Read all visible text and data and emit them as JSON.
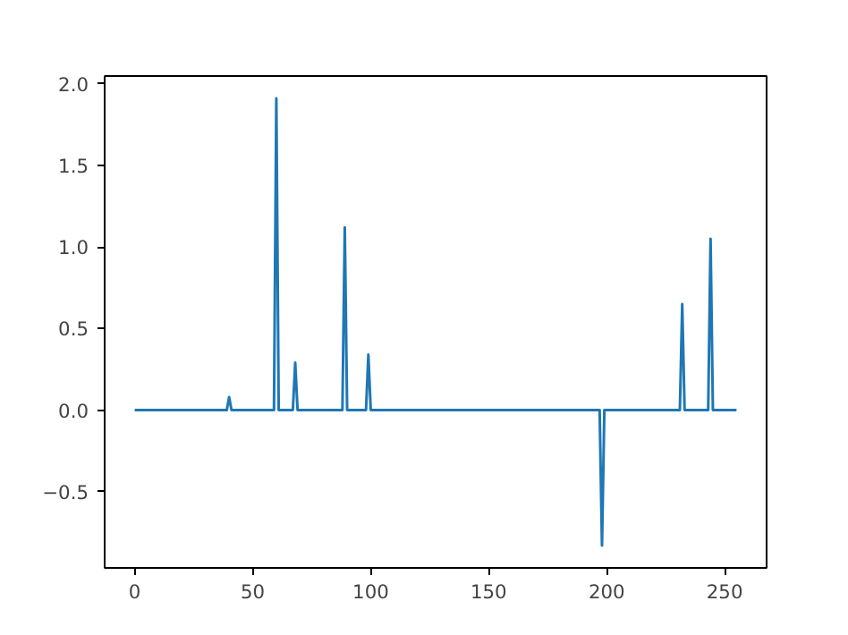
{
  "chart_data": {
    "type": "line",
    "x": [
      0,
      39,
      40,
      41,
      59,
      60,
      61,
      67,
      68,
      69,
      88,
      89,
      90,
      98,
      99,
      100,
      197,
      198,
      199,
      231,
      232,
      233,
      243,
      244,
      245,
      255
    ],
    "series": [
      {
        "color": "#1f77b4",
        "values": [
          0,
          0,
          0.08,
          0,
          0,
          1.91,
          0,
          0,
          0.29,
          0,
          0,
          1.12,
          0,
          0,
          0.34,
          0,
          0,
          -0.83,
          0,
          0,
          0.65,
          0,
          0,
          1.05,
          0,
          0
        ]
      }
    ],
    "xlim": [
      -12.75,
      267.75
    ],
    "ylim": [
      -0.967,
      2.047
    ],
    "xticks": [
      0,
      50,
      100,
      150,
      200,
      250
    ],
    "yticks": [
      {
        "value": -0.5,
        "label": "−0.5"
      },
      {
        "value": 0,
        "label": "0.0"
      },
      {
        "value": 0.5,
        "label": "0.5"
      },
      {
        "value": 1.0,
        "label": "1.0"
      },
      {
        "value": 1.5,
        "label": "1.5"
      },
      {
        "value": 2.0,
        "label": "2.0"
      }
    ],
    "grid": false
  }
}
